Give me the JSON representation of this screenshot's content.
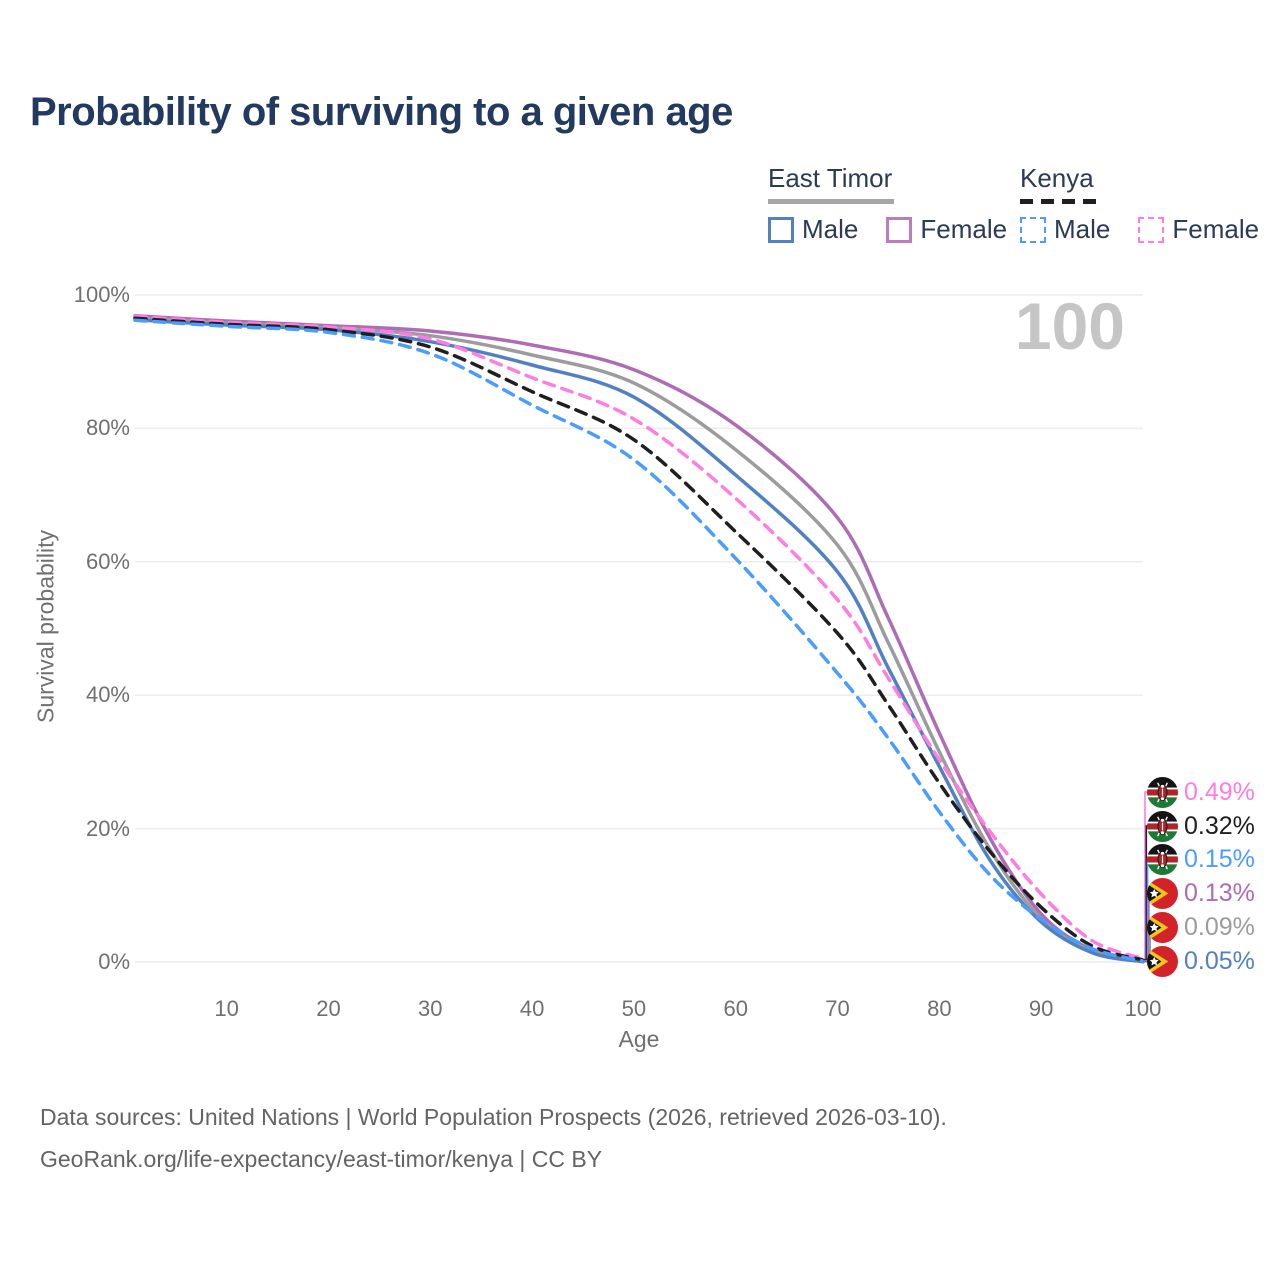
{
  "title": "Probability of surviving to a given age",
  "watermark": "100",
  "legend": {
    "groups": [
      {
        "country": "East Timor",
        "line_style": "solid",
        "line_color": "#a6a6a6",
        "items": [
          {
            "label": "Male",
            "color": "#5181c2"
          },
          {
            "label": "Female",
            "color": "#bd7cbd"
          }
        ]
      },
      {
        "country": "Kenya",
        "line_style": "dashed",
        "line_color": "#1f1f1f",
        "items": [
          {
            "label": "Male",
            "color": "#4a9dff"
          },
          {
            "label": "Female",
            "color": "#ff7ce0"
          }
        ]
      }
    ]
  },
  "chart_data": {
    "type": "line",
    "title": "Probability of surviving to a given age",
    "xlabel": "Age",
    "ylabel": "Survival probability",
    "xlim": [
      1,
      100
    ],
    "ylim": [
      0,
      100
    ],
    "grid": "horizontal",
    "x_ticks": [
      10,
      20,
      30,
      40,
      50,
      60,
      70,
      80,
      90,
      100
    ],
    "y_ticks": {
      "values": [
        0,
        20,
        40,
        60,
        80,
        100
      ],
      "labels": [
        "0%",
        "20%",
        "40%",
        "60%",
        "80%",
        "100%"
      ]
    },
    "x": [
      1,
      10,
      20,
      30,
      40,
      50,
      60,
      70,
      75,
      80,
      85,
      90,
      95,
      100
    ],
    "series": [
      {
        "name": "East Timor Female",
        "country": "East Timor",
        "sex": "Female",
        "style": "solid",
        "color": "#ad6cb5",
        "end_value": "0.13%",
        "values": [
          96.9,
          96.1,
          95.4,
          94.6,
          92.5,
          88.8,
          80.5,
          66.6,
          51.5,
          34.3,
          18.5,
          7.2,
          1.8,
          0.13
        ]
      },
      {
        "name": "East Timor Both sexes",
        "country": "East Timor",
        "sex": "Both sexes",
        "style": "solid",
        "color": "#9c9c9c",
        "end_value": "0.09%",
        "values": [
          96.6,
          95.8,
          95.1,
          93.9,
          91.0,
          86.8,
          76.8,
          62.5,
          47.8,
          31.5,
          16.8,
          6.5,
          1.6,
          0.09
        ]
      },
      {
        "name": "East Timor Male",
        "country": "East Timor",
        "sex": "Male",
        "style": "solid",
        "color": "#5181c2",
        "end_value": "0.05%",
        "values": [
          96.3,
          95.5,
          94.8,
          93.0,
          89.5,
          84.7,
          73.0,
          58.5,
          44.0,
          29.3,
          15.2,
          6.0,
          1.4,
          0.05
        ]
      },
      {
        "name": "Kenya Female",
        "country": "Kenya",
        "sex": "Female",
        "style": "dashed",
        "color": "#ff7ce0",
        "end_value": "0.49%",
        "values": [
          96.8,
          95.9,
          95.2,
          93.4,
          87.6,
          81.4,
          69.5,
          54.3,
          42.5,
          30.3,
          19.5,
          10.2,
          3.2,
          0.49
        ]
      },
      {
        "name": "Kenya Both sexes",
        "country": "Kenya",
        "sex": "Both sexes",
        "style": "dashed",
        "color": "#1f1f1f",
        "end_value": "0.32%",
        "values": [
          96.5,
          95.6,
          94.8,
          92.2,
          85.5,
          78.3,
          64.5,
          49.3,
          38.5,
          26.8,
          16.5,
          8.2,
          2.4,
          0.32
        ]
      },
      {
        "name": "Kenya Male",
        "country": "Kenya",
        "sex": "Male",
        "style": "dashed",
        "color": "#4a9dff",
        "end_value": "0.15%",
        "values": [
          96.2,
          95.3,
          94.4,
          91.2,
          83.5,
          75.3,
          60.5,
          43.3,
          33.5,
          22.5,
          13.0,
          6.4,
          2.0,
          0.15
        ]
      }
    ]
  },
  "end_labels": [
    {
      "value": "0.49%",
      "flag": "kenya",
      "color": "#ff7ce0",
      "series": "Kenya Female"
    },
    {
      "value": "0.32%",
      "flag": "kenya",
      "color": "#1f1f1f",
      "series": "Kenya Both sexes"
    },
    {
      "value": "0.15%",
      "flag": "kenya",
      "color": "#4a9dff",
      "series": "Kenya Male"
    },
    {
      "value": "0.13%",
      "flag": "east-timor",
      "color": "#ad6cb5",
      "series": "East Timor Female"
    },
    {
      "value": "0.09%",
      "flag": "east-timor",
      "color": "#9c9c9c",
      "series": "East Timor Both sexes"
    },
    {
      "value": "0.05%",
      "flag": "east-timor",
      "color": "#5181c2",
      "series": "East Timor Male"
    }
  ],
  "footer": {
    "line1": "Data sources: United Nations | World Population Prospects (2026, retrieved 2026-03-10).",
    "line2": "GeoRank.org/life-expectancy/east-timor/kenya | CC BY"
  }
}
